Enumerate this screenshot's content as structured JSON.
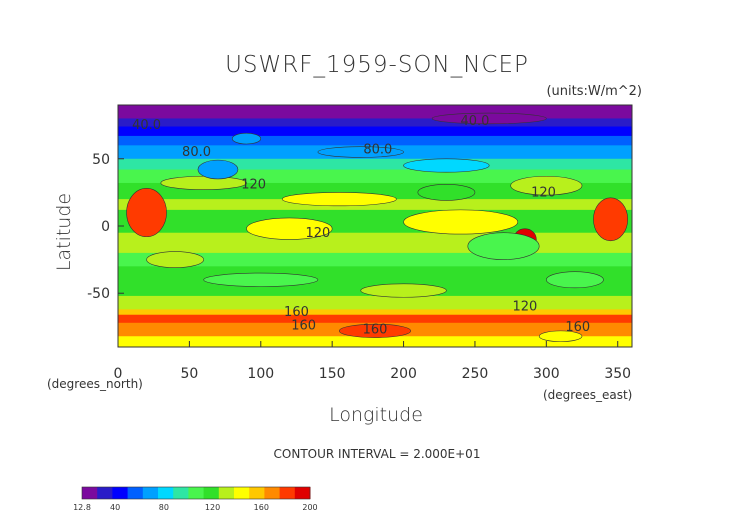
{
  "chart_data": {
    "type": "heatmap",
    "title": "USWRF_1959-SON_NCEP",
    "units": "(units:W/m^2)",
    "xlabel": "Longitude",
    "ylabel": "Latitude",
    "x_unit_label": "(degrees_east)",
    "y_unit_label": "(degrees_north)",
    "xlim": [
      0,
      360
    ],
    "ylim": [
      -90,
      90
    ],
    "xticks": [
      "0",
      "50",
      "100",
      "150",
      "200",
      "250",
      "300",
      "350"
    ],
    "yticks": [
      "50",
      "0",
      "-50"
    ],
    "contour_interval_text": "CONTOUR INTERVAL = 2.000E+01",
    "contour_labels": [
      {
        "text": "40.0",
        "lon": 20,
        "lat": 72
      },
      {
        "text": "40.0",
        "lon": 250,
        "lat": 75
      },
      {
        "text": "80.0",
        "lon": 55,
        "lat": 52
      },
      {
        "text": "80.0",
        "lon": 182,
        "lat": 54
      },
      {
        "text": "120",
        "lon": 95,
        "lat": 28
      },
      {
        "text": "120",
        "lon": 140,
        "lat": -8
      },
      {
        "text": "120",
        "lon": 298,
        "lat": 22
      },
      {
        "text": "120",
        "lon": 285,
        "lat": -63
      },
      {
        "text": "160",
        "lon": 125,
        "lat": -67
      },
      {
        "text": "160",
        "lon": 130,
        "lat": -77
      },
      {
        "text": "160",
        "lon": 180,
        "lat": -80
      },
      {
        "text": "160",
        "lon": 322,
        "lat": -78
      }
    ],
    "colorbar": {
      "tick_labels": [
        "12.8",
        "40",
        "80",
        "120",
        "160",
        "200"
      ],
      "min": 12.8,
      "max": 200
    },
    "colors": {
      "levels": [
        "#7b0a9e",
        "#2a1cc8",
        "#0000ff",
        "#0060ff",
        "#00a0ff",
        "#00d8ff",
        "#2ee6a4",
        "#49f54d",
        "#31e02a",
        "#b8f01c",
        "#ffff00",
        "#ffc800",
        "#ff8a00",
        "#ff3a00",
        "#e00000"
      ]
    }
  }
}
